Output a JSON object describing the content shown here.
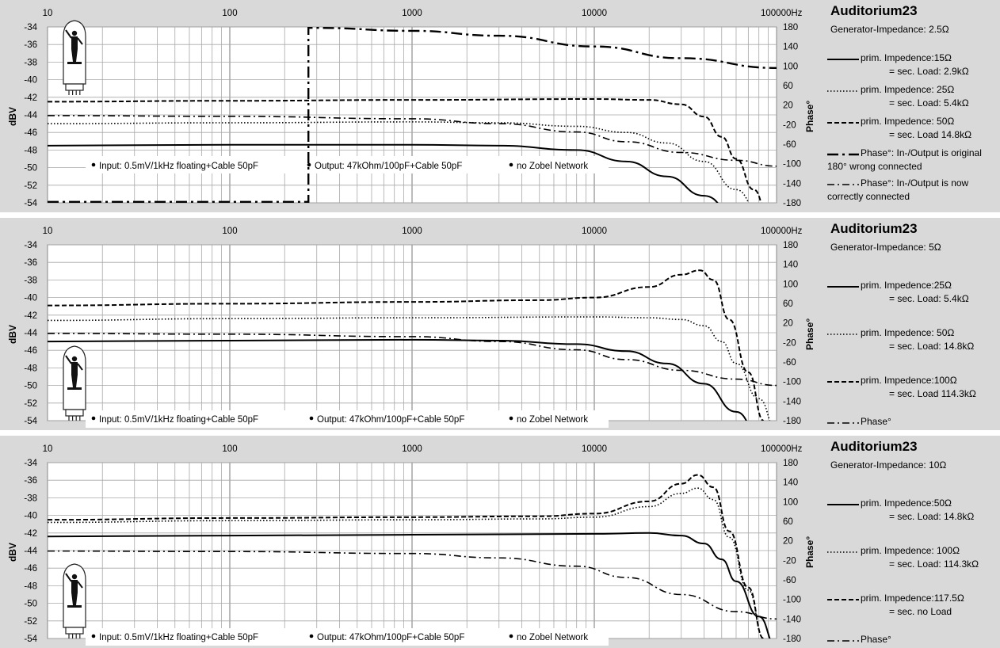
{
  "chart_data": [
    {
      "type": "line",
      "x_scale": "log",
      "xlim": [
        10,
        100000
      ],
      "x_ticks": [
        "10",
        "100",
        "1000",
        "10000",
        "100000Hz"
      ],
      "ylabel": "dBV",
      "ylim": [
        -54,
        -34
      ],
      "y_ticks": [
        "-34",
        "-36",
        "-38",
        "-40",
        "-42",
        "-44",
        "-46",
        "-48",
        "-50",
        "-52",
        "-54"
      ],
      "y2label": "Phase°",
      "y2lim": [
        -180,
        180
      ],
      "y2_ticks": [
        "180",
        "140",
        "100",
        "60",
        "20",
        "-20",
        "-60",
        "-100",
        "-140",
        "-180"
      ],
      "grid": true,
      "title": "Auditorium23",
      "subtitle": "Generator-Impedance: 2.5Ω",
      "notes": [
        "Input: 0.5mV/1kHz floating+Cable 50pF",
        "Output: 47kOhm/100pF+Cable 50pF",
        "no Zobel Network"
      ],
      "series": [
        {
          "name": "prim. Impedence:15Ω",
          "name2": "= sec. Load: 2.9kΩ",
          "style": "solid",
          "axis": "left",
          "x": [
            10,
            100,
            1000,
            3000,
            8000,
            15000,
            25000,
            40000,
            60000
          ],
          "y": [
            -47.5,
            -47.4,
            -47.4,
            -47.5,
            -48.0,
            -49.3,
            -51.0,
            -53.2,
            -55.5
          ]
        },
        {
          "name": "prim. Impedence: 25Ω",
          "name2": "= sec. Load: 5.4kΩ",
          "style": "dotted",
          "axis": "left",
          "x": [
            10,
            100,
            1000,
            3000,
            8000,
            15000,
            25000,
            40000,
            60000,
            80000
          ],
          "y": [
            -45.0,
            -44.9,
            -44.8,
            -44.9,
            -45.3,
            -46.0,
            -47.2,
            -49.3,
            -52.5,
            -55.0
          ]
        },
        {
          "name": "prim. Impedence: 50Ω",
          "name2": "= sec. Load 14.8kΩ",
          "style": "dashed",
          "axis": "left",
          "x": [
            10,
            100,
            1000,
            10000,
            20000,
            30000,
            40000,
            50000,
            60000,
            75000,
            90000
          ],
          "y": [
            -42.5,
            -42.4,
            -42.3,
            -42.2,
            -42.3,
            -42.8,
            -44.2,
            -46.5,
            -49.0,
            -52.5,
            -55.5
          ]
        },
        {
          "name": "Phase°: In-/Output is original",
          "name2": "180° wrong connected",
          "style": "dashdot-long",
          "axis": "right",
          "x": [
            10,
            270,
            270,
            300,
            1000,
            3000,
            10000,
            30000,
            100000
          ],
          "y": [
            -178,
            -178,
            178,
            178,
            172,
            162,
            140,
            116,
            96
          ]
        },
        {
          "name": "Phase°: In-/Output is now",
          "name2": "correctly connected",
          "style": "dashdot",
          "axis": "right",
          "x": [
            10,
            100,
            1000,
            3000,
            8000,
            15000,
            30000,
            60000,
            100000
          ],
          "y": [
            -1.5,
            -3,
            -8,
            -18,
            -35,
            -55,
            -77,
            -93,
            -105
          ]
        }
      ]
    },
    {
      "type": "line",
      "x_scale": "log",
      "xlim": [
        10,
        100000
      ],
      "x_ticks": [
        "10",
        "100",
        "1000",
        "10000",
        "100000Hz"
      ],
      "ylabel": "dBV",
      "ylim": [
        -54,
        -34
      ],
      "y_ticks": [
        "-34",
        "-36",
        "-38",
        "-40",
        "-42",
        "-44",
        "-46",
        "-48",
        "-50",
        "-52",
        "-54"
      ],
      "y2label": "Phase°",
      "y2lim": [
        -180,
        180
      ],
      "y2_ticks": [
        "180",
        "140",
        "100",
        "60",
        "20",
        "-20",
        "-60",
        "-100",
        "-140",
        "-180"
      ],
      "grid": true,
      "title": "Auditorium23",
      "subtitle": "Generator-Impedance: 5Ω",
      "notes": [
        "Input: 0.5mV/1kHz  floating+Cable 50pF",
        "Output:  47kOhm/100pF+Cable 50pF",
        "no Zobel Network"
      ],
      "series": [
        {
          "name": "prim. Impedence:25Ω",
          "name2": "= sec. Load: 5.4kΩ",
          "style": "solid",
          "axis": "left",
          "x": [
            10,
            100,
            1000,
            3000,
            8000,
            15000,
            25000,
            40000,
            60000,
            80000
          ],
          "y": [
            -45.0,
            -44.9,
            -44.8,
            -44.9,
            -45.3,
            -46.1,
            -47.5,
            -49.8,
            -53.0,
            -55.5
          ]
        },
        {
          "name": "prim. Impedence:  50Ω",
          "name2": "= sec. Load: 14.8kΩ",
          "style": "dotted",
          "axis": "left",
          "x": [
            10,
            100,
            1000,
            10000,
            20000,
            30000,
            40000,
            50000,
            60000,
            80000,
            100000
          ],
          "y": [
            -42.6,
            -42.4,
            -42.3,
            -42.2,
            -42.3,
            -42.5,
            -43.2,
            -45.0,
            -47.5,
            -51.5,
            -55.0
          ]
        },
        {
          "name": "prim. Impedence:100Ω",
          "name2": "= sec. Load 114.3kΩ",
          "style": "dashed",
          "axis": "left",
          "x": [
            10,
            100,
            1000,
            5000,
            10000,
            20000,
            30000,
            38000,
            45000,
            55000,
            70000,
            85000
          ],
          "y": [
            -40.9,
            -40.7,
            -40.5,
            -40.3,
            -40.0,
            -38.8,
            -37.4,
            -36.9,
            -38.0,
            -42.5,
            -48.5,
            -54.0
          ]
        },
        {
          "name": "Phase°",
          "name2": "",
          "style": "dashdot",
          "axis": "right",
          "x": [
            10,
            100,
            1000,
            3000,
            8000,
            15000,
            30000,
            60000,
            100000
          ],
          "y": [
            -1.5,
            -3,
            -8,
            -18,
            -35,
            -55,
            -77,
            -95,
            -108
          ]
        }
      ]
    },
    {
      "type": "line",
      "x_scale": "log",
      "xlim": [
        10,
        100000
      ],
      "x_ticks": [
        "10",
        "100",
        "1000",
        "10000",
        "100000Hz"
      ],
      "ylabel": "dBV",
      "ylim": [
        -54,
        -34
      ],
      "y_ticks": [
        "-34",
        "-36",
        "-38",
        "-40",
        "-42",
        "-44",
        "-46",
        "-48",
        "-50",
        "-52",
        "-54"
      ],
      "y2label": "Phase°",
      "y2lim": [
        -180,
        180
      ],
      "y2_ticks": [
        "180",
        "140",
        "100",
        "60",
        "20",
        "-20",
        "-60",
        "-100",
        "-140",
        "-180"
      ],
      "grid": true,
      "title": "Auditorium23",
      "subtitle": "Generator-Impedance: 10Ω",
      "notes": [
        "Input: 0.5mV/1kHz  floating+Cable 50pF",
        "Output:  47kOhm/100pF+Cable 50pF",
        "no Zobel Network"
      ],
      "series": [
        {
          "name": "prim. Impedence:50Ω",
          "name2": "= sec. Load: 14.8kΩ",
          "style": "solid",
          "axis": "left",
          "x": [
            10,
            100,
            1000,
            10000,
            20000,
            30000,
            40000,
            50000,
            60000,
            80000,
            100000
          ],
          "y": [
            -42.4,
            -42.3,
            -42.2,
            -42.1,
            -42.0,
            -42.3,
            -43.2,
            -45.0,
            -47.5,
            -51.5,
            -55.0
          ]
        },
        {
          "name": "prim. Impedence:  100Ω",
          "name2": "= sec. Load: 114.3kΩ",
          "style": "dotted",
          "axis": "left",
          "x": [
            10,
            100,
            1000,
            5000,
            10000,
            20000,
            30000,
            37000,
            45000,
            55000,
            70000,
            85000
          ],
          "y": [
            -40.8,
            -40.6,
            -40.5,
            -40.4,
            -40.2,
            -39.0,
            -37.5,
            -36.9,
            -38.2,
            -42.5,
            -48.5,
            -54.0
          ]
        },
        {
          "name": "prim. Impedence:117.5Ω",
          "name2": "= sec. no Load",
          "style": "dashed",
          "axis": "left",
          "x": [
            10,
            100,
            1000,
            5000,
            10000,
            20000,
            30000,
            37000,
            45000,
            55000,
            70000,
            85000
          ],
          "y": [
            -40.5,
            -40.3,
            -40.2,
            -40.1,
            -39.8,
            -38.4,
            -36.4,
            -35.4,
            -36.8,
            -41.8,
            -48.2,
            -54.0
          ]
        },
        {
          "name": "Phase°",
          "name2": "",
          "style": "dashdot",
          "axis": "right",
          "x": [
            10,
            100,
            1000,
            3000,
            8000,
            15000,
            30000,
            60000,
            100000
          ],
          "y": [
            -1,
            -2,
            -6,
            -15,
            -32,
            -55,
            -90,
            -125,
            -140
          ]
        }
      ]
    }
  ]
}
